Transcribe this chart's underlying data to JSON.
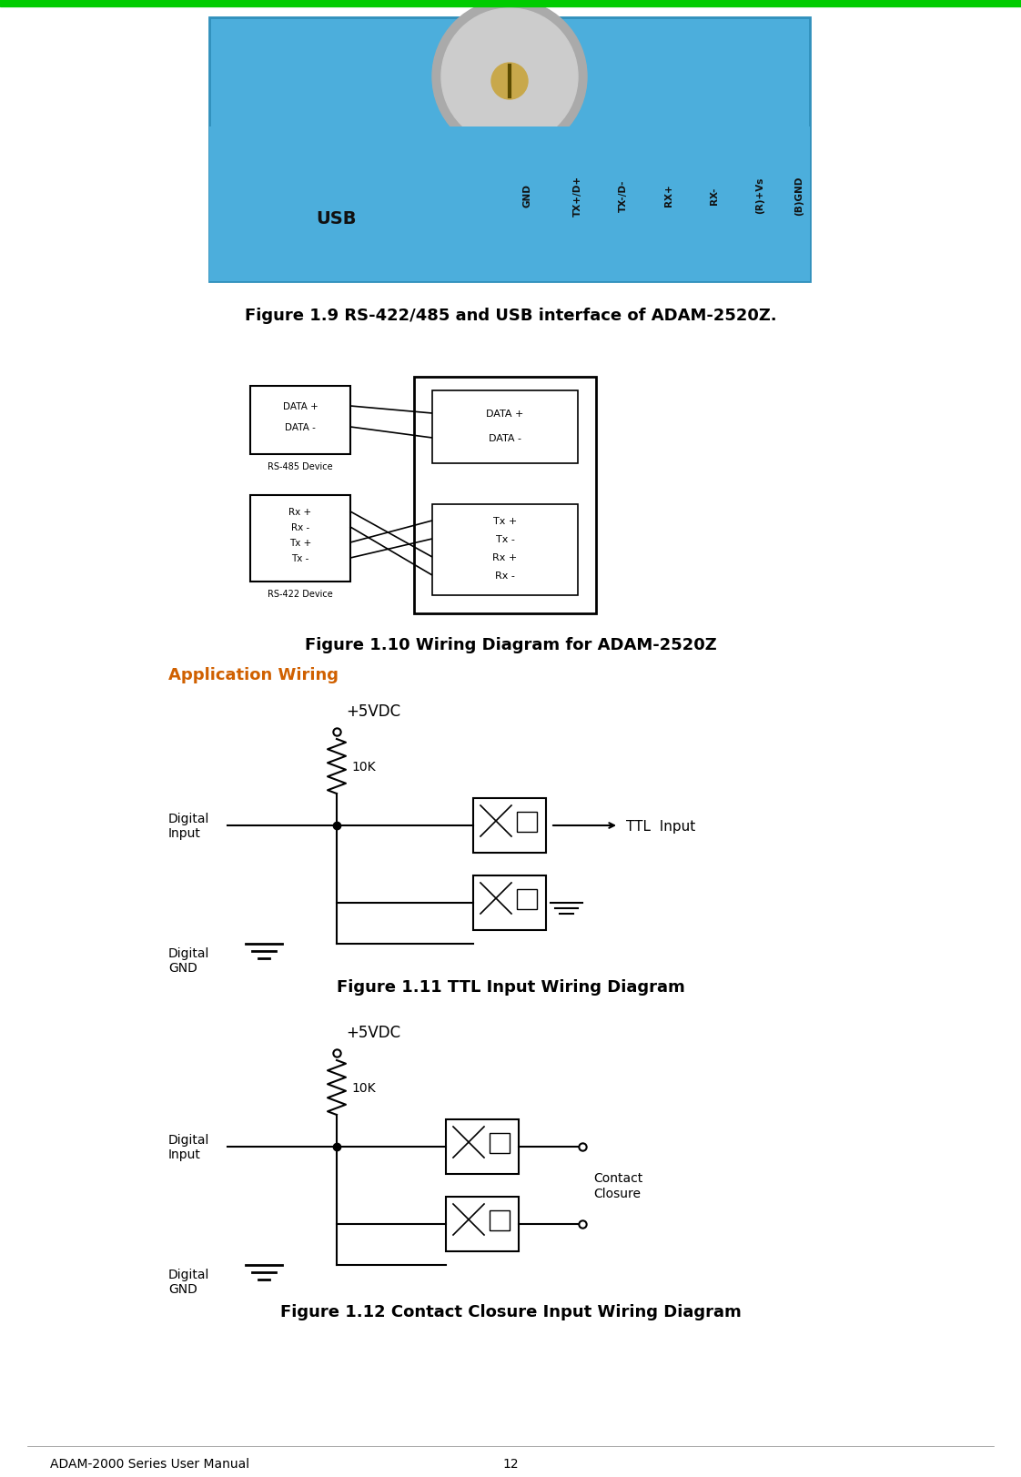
{
  "page_title_left": "ADAM-2000 Series User Manual",
  "page_number": "12",
  "green_bar_color": "#00cc00",
  "background_color": "#ffffff",
  "fig1_9_caption": "Figure 1.9 RS-422/485 and USB interface of ADAM-2520Z.",
  "fig1_10_caption": "Figure 1.10 Wiring Diagram for ADAM-2520Z",
  "fig1_11_caption": "Figure 1.11 TTL Input Wiring Diagram",
  "fig1_12_caption": "Figure 1.12 Contact Closure Input Wiring Diagram",
  "app_wiring_label": "Application Wiring"
}
